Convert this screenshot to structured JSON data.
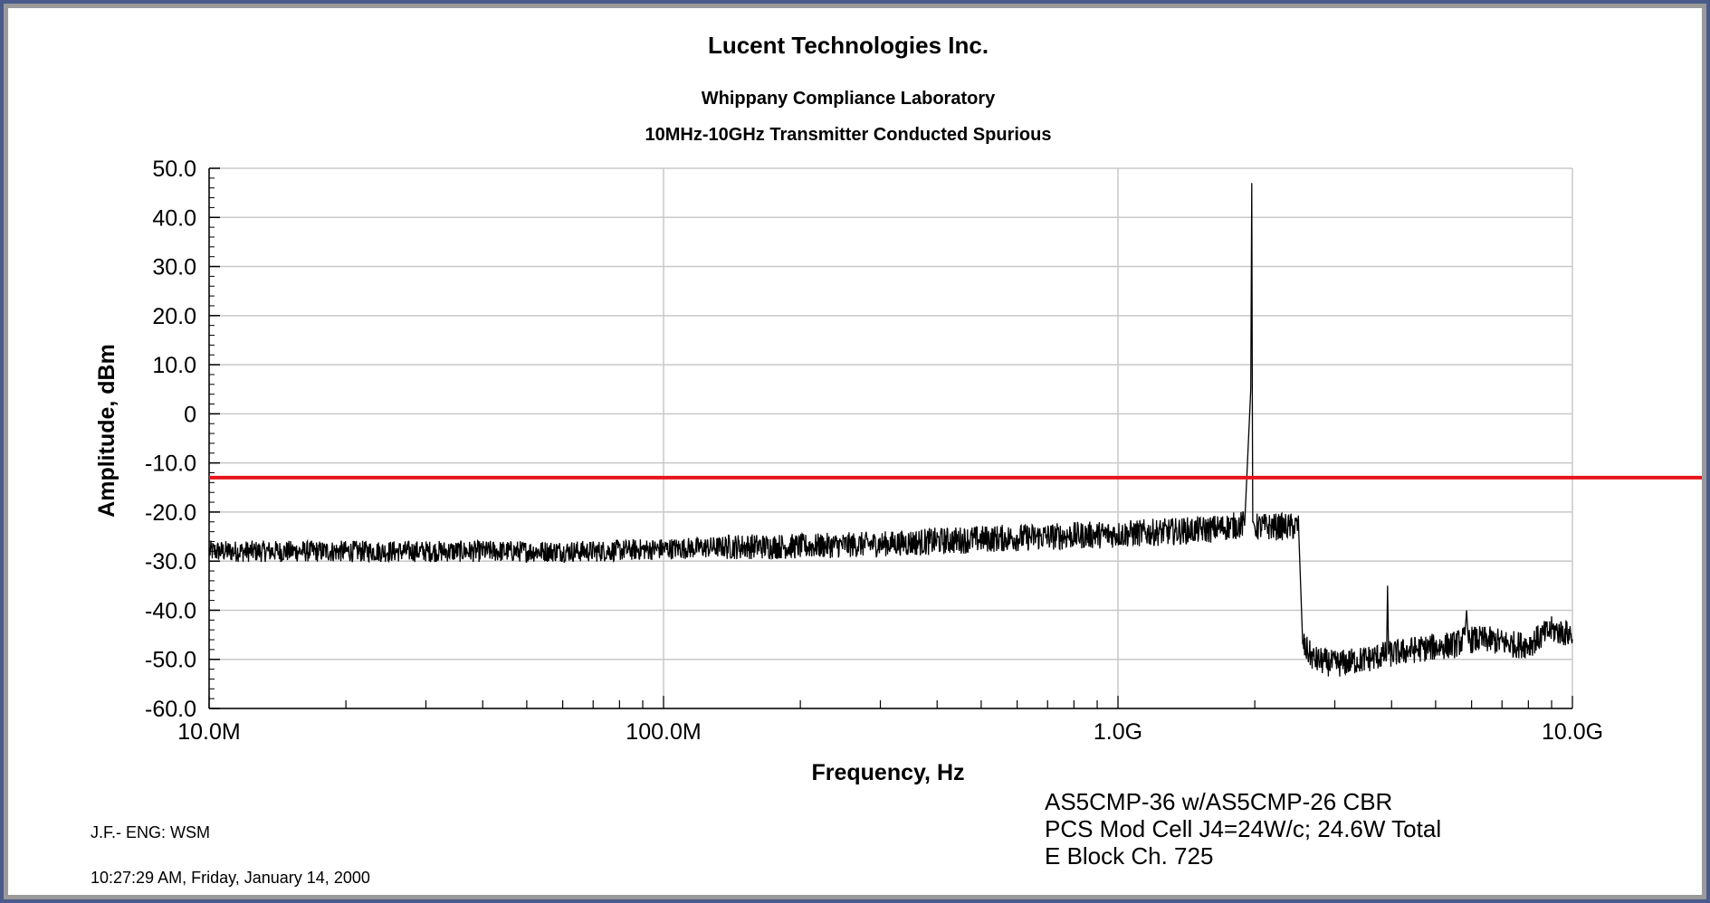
{
  "header": {
    "company": "Lucent Technologies Inc.",
    "lab": "Whippany Compliance Laboratory",
    "test": "10MHz-10GHz Transmitter Conducted Spurious"
  },
  "footer": {
    "engineer": "J.F.- ENG: WSM",
    "timestamp": "10:27:29 AM, Friday, January 14, 2000",
    "notes": [
      "AS5CMP-36  w/AS5CMP-26 CBR",
      "PCS Mod Cell J4=24W/c; 24.6W Total",
      "E Block  Ch. 725"
    ]
  },
  "colors": {
    "frame_border": "#3b4a78",
    "grid": "#c8c8c8",
    "trace": "#000000",
    "limit_line": "#e8141b"
  },
  "chart_data": {
    "type": "line",
    "title": "Lucent Technologies Inc.",
    "subtitle": [
      "Whippany Compliance Laboratory",
      "10MHz-10GHz Transmitter Conducted Spurious"
    ],
    "xlabel": "Frequency, Hz",
    "ylabel": "Amplitude, dBm",
    "x_scale": "log",
    "xlim": [
      10000000,
      10000000000
    ],
    "ylim": [
      -60,
      50
    ],
    "x_ticks": [
      {
        "value": 10000000,
        "label": "10.0M"
      },
      {
        "value": 100000000,
        "label": "100.0M"
      },
      {
        "value": 1000000000,
        "label": "1.0G"
      },
      {
        "value": 10000000000,
        "label": "10.0G"
      }
    ],
    "y_ticks": [
      {
        "value": 50,
        "label": "50.0"
      },
      {
        "value": 40,
        "label": "40.0"
      },
      {
        "value": 30,
        "label": "30.0"
      },
      {
        "value": 20,
        "label": "20.0"
      },
      {
        "value": 10,
        "label": "10.0"
      },
      {
        "value": 0,
        "label": "0"
      },
      {
        "value": -10,
        "label": "-10.0"
      },
      {
        "value": -20,
        "label": "-20.0"
      },
      {
        "value": -30,
        "label": "-30.0"
      },
      {
        "value": -40,
        "label": "-40.0"
      },
      {
        "value": -50,
        "label": "-50.0"
      },
      {
        "value": -60,
        "label": "-60.0"
      }
    ],
    "grid": true,
    "limit_line_dBm": -13,
    "series": [
      {
        "x": [
          10000000,
          20000000,
          40000000,
          70000000,
          100000000,
          150000000,
          200000000,
          300000000,
          500000000,
          700000000,
          1000000000,
          1300000000,
          1600000000,
          1900000000,
          1960000000,
          1970000000,
          1975000000,
          1980000000,
          1985000000,
          2000000000,
          2200000000,
          2500000000,
          2550000000,
          2700000000,
          3000000000,
          3500000000,
          3900000000,
          3920000000,
          3940000000,
          4500000000,
          5500000000,
          5800000000,
          5850000000,
          5900000000,
          6500000000,
          7500000000,
          8000000000,
          9000000000,
          10000000000
        ],
        "y": [
          -28,
          -28,
          -28,
          -28,
          -27.5,
          -27,
          -27,
          -26.5,
          -25.5,
          -25,
          -24.5,
          -24,
          -23.5,
          -22.5,
          5,
          47,
          4,
          -22,
          -22,
          -23,
          -23,
          -23,
          -47,
          -50,
          -51,
          -50,
          -49,
          -35,
          -49,
          -48,
          -47,
          -46,
          -40,
          -46,
          -46,
          -47,
          -47,
          -44,
          -45
        ]
      }
    ]
  }
}
